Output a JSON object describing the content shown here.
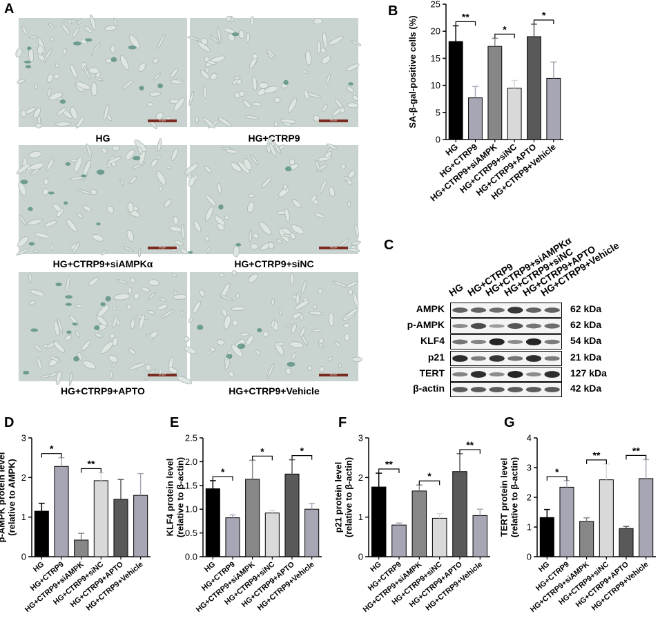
{
  "panel_a": {
    "letter": "A",
    "images": [
      {
        "caption": "HG",
        "scale_bar": "50 μm"
      },
      {
        "caption": "HG+CTRP9",
        "scale_bar": "50 μm"
      },
      {
        "caption": "HG+CTRP9+siAMPKα",
        "scale_bar": "50 μm"
      },
      {
        "caption": "HG+CTRP9+siNC",
        "scale_bar": "50 μm"
      },
      {
        "caption": "HG+CTRP9+APTO",
        "scale_bar": "50 μm"
      },
      {
        "caption": "HG+CTRP9+Vehicle",
        "scale_bar": "50 μm"
      }
    ]
  },
  "panel_c": {
    "letter": "C",
    "lanes": [
      "HG",
      "HG+CTRP9",
      "HG+CTRP9+siAMPKα",
      "HG+CTRP9+siNC",
      "HG+CTRP9+APTO",
      "HG+CTRP9+Vehicle"
    ],
    "rows": [
      {
        "protein": "AMPK",
        "kda": "62 kDa",
        "intensity": [
          0.55,
          0.55,
          0.5,
          0.85,
          0.55,
          0.55
        ]
      },
      {
        "protein": "p-AMPK",
        "kda": "62 kDa",
        "intensity": [
          0.3,
          0.7,
          0.2,
          0.65,
          0.45,
          0.5
        ]
      },
      {
        "protein": "KLF4",
        "kda": "54 kDa",
        "intensity": [
          0.45,
          0.35,
          0.95,
          0.3,
          0.95,
          0.4
        ]
      },
      {
        "protein": "p21",
        "kda": "21 kDa",
        "intensity": [
          0.9,
          0.4,
          0.85,
          0.45,
          0.9,
          0.4
        ]
      },
      {
        "protein": "TERT",
        "kda": "127 kDa",
        "intensity": [
          0.35,
          0.9,
          0.3,
          0.95,
          0.3,
          0.9
        ]
      },
      {
        "protein": "β-actin",
        "kda": "42 kDa",
        "intensity": [
          0.6,
          0.6,
          0.6,
          0.6,
          0.6,
          0.6
        ]
      }
    ]
  },
  "chart_data": [
    {
      "id": "B",
      "letter": "B",
      "type": "bar",
      "categories": [
        "HG",
        "HG+CTRP9",
        "HG+CTRP9+siAMPK",
        "HG+CTRP9+siNC",
        "HG+CTRP9+APTO",
        "HG+CTRP9+Vehicle"
      ],
      "values": [
        18.1,
        7.7,
        17.2,
        9.5,
        19.0,
        11.3
      ],
      "errors": [
        2.9,
        2.1,
        1.5,
        1.4,
        2.3,
        3.0
      ],
      "ylabel": "SA-β-gal-positive cells (%)",
      "ylim": [
        0,
        25
      ],
      "yticks": [
        "0",
        "5",
        "10",
        "15",
        "20",
        "25"
      ],
      "sig": [
        {
          "from": 0,
          "to": 1,
          "label": "**"
        },
        {
          "from": 2,
          "to": 3,
          "label": "*"
        },
        {
          "from": 4,
          "to": 5,
          "label": "*"
        }
      ],
      "colors": [
        "#000000",
        "#a6a6b4",
        "#878787",
        "#d9d9d9",
        "#595959",
        "#a6a6b4"
      ]
    },
    {
      "id": "D",
      "letter": "D",
      "type": "bar",
      "categories": [
        "HG",
        "HG+CTRP9",
        "HG+CTRP9+siAMPK",
        "HG+CTRP9+siNC",
        "HG+CTRP9+APTO",
        "HG+CTRP9+Vehicle"
      ],
      "values": [
        1.15,
        2.28,
        0.42,
        1.92,
        1.45,
        1.55
      ],
      "errors": [
        0.2,
        0.22,
        0.17,
        0.2,
        0.5,
        0.55
      ],
      "ylabel": "p-AMPK protein level\n(relative to AMPK)",
      "ylim": [
        0,
        3
      ],
      "yticks": [
        "0",
        "1",
        "2",
        "3"
      ],
      "sig": [
        {
          "from": 0,
          "to": 1,
          "label": "*"
        },
        {
          "from": 2,
          "to": 3,
          "label": "**"
        }
      ],
      "colors": [
        "#000000",
        "#a6a6b4",
        "#878787",
        "#d9d9d9",
        "#595959",
        "#a6a6b4"
      ]
    },
    {
      "id": "E",
      "letter": "E",
      "type": "bar",
      "categories": [
        "HG",
        "HG+CTRP9",
        "HG+CTRP9+siAMPK",
        "HG+CTRP9+siNC",
        "HG+CTRP9+APTO",
        "HG+CTRP9+Vehicle"
      ],
      "values": [
        1.43,
        0.82,
        1.63,
        0.92,
        1.74,
        1.0
      ],
      "errors": [
        0.17,
        0.06,
        0.4,
        0.05,
        0.3,
        0.12
      ],
      "ylabel": "KLF4 protein level\n(relative to β-actin)",
      "ylim": [
        0,
        2.5
      ],
      "yticks": [
        "0.0",
        "0.5",
        "1.0",
        "1.5",
        "2.0",
        "2.5"
      ],
      "sig": [
        {
          "from": 0,
          "to": 1,
          "label": "*"
        },
        {
          "from": 2,
          "to": 3,
          "label": "*"
        },
        {
          "from": 4,
          "to": 5,
          "label": "*"
        }
      ],
      "colors": [
        "#000000",
        "#a6a6b4",
        "#878787",
        "#d9d9d9",
        "#595959",
        "#a6a6b4"
      ]
    },
    {
      "id": "F",
      "letter": "F",
      "type": "bar",
      "categories": [
        "HG",
        "HG+CTRP9",
        "HG+CTRP9+siAMPK",
        "HG+CTRP9+siNC",
        "HG+CTRP9+APTO",
        "HG+CTRP9+Vehicle"
      ],
      "values": [
        1.76,
        0.8,
        1.66,
        0.97,
        2.15,
        1.04
      ],
      "errors": [
        0.35,
        0.05,
        0.15,
        0.12,
        0.45,
        0.16
      ],
      "ylabel": "p21 protein level\n(relative to β-actin)",
      "ylim": [
        0,
        3
      ],
      "yticks": [
        "0",
        "1",
        "2",
        "3"
      ],
      "sig": [
        {
          "from": 0,
          "to": 1,
          "label": "**"
        },
        {
          "from": 2,
          "to": 3,
          "label": "*"
        },
        {
          "from": 4,
          "to": 5,
          "label": "**"
        }
      ],
      "colors": [
        "#000000",
        "#a6a6b4",
        "#878787",
        "#d9d9d9",
        "#595959",
        "#a6a6b4"
      ]
    },
    {
      "id": "G",
      "letter": "G",
      "type": "bar",
      "categories": [
        "HG",
        "HG+CTRP9",
        "HG+CTRP9+siAMPK",
        "HG+CTRP9+siNC",
        "HG+CTRP9+APTO",
        "HG+CTRP9+Vehicle"
      ],
      "values": [
        1.32,
        2.34,
        1.19,
        2.59,
        0.95,
        2.63
      ],
      "errors": [
        0.27,
        0.22,
        0.12,
        0.53,
        0.07,
        0.64
      ],
      "ylabel": "TERT protein level\n(relative to β-actin)",
      "ylim": [
        0,
        4
      ],
      "yticks": [
        "0",
        "1",
        "2",
        "3",
        "4"
      ],
      "sig": [
        {
          "from": 0,
          "to": 1,
          "label": "*"
        },
        {
          "from": 2,
          "to": 3,
          "label": "**"
        },
        {
          "from": 4,
          "to": 5,
          "label": "**"
        }
      ],
      "colors": [
        "#000000",
        "#a6a6b4",
        "#878787",
        "#d9d9d9",
        "#595959",
        "#a6a6b4"
      ]
    }
  ]
}
